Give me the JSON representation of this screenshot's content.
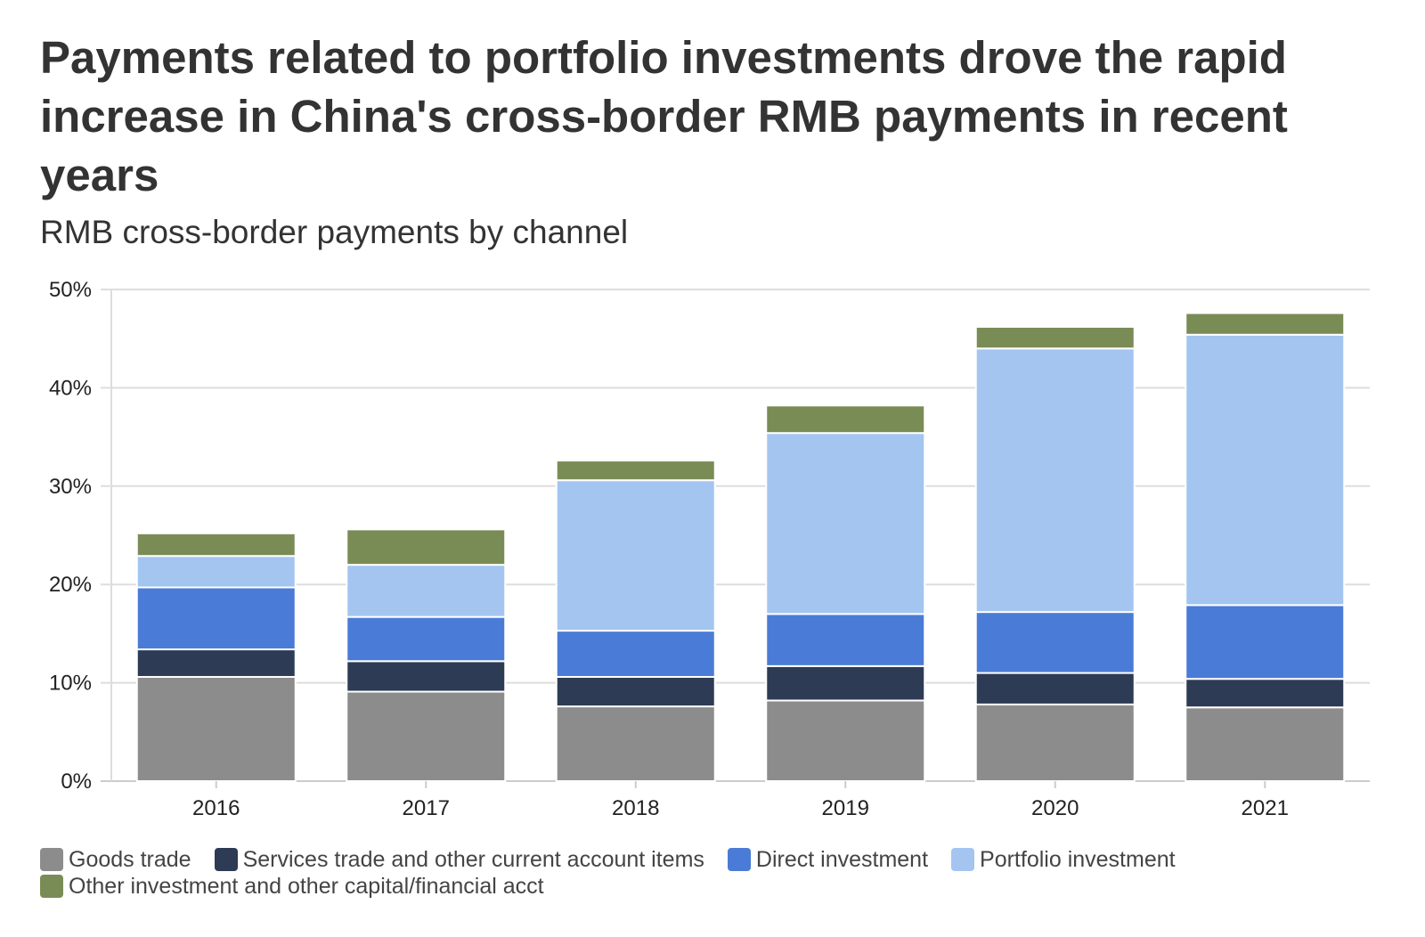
{
  "title": "Payments related to portfolio investments drove the rapid increase in China's cross-border RMB payments in recent years",
  "subtitle": "RMB cross-border payments by channel",
  "chart_data": {
    "type": "bar",
    "stacked": true,
    "categories": [
      "2016",
      "2017",
      "2018",
      "2019",
      "2020",
      "2021"
    ],
    "series": [
      {
        "name": "Goods trade",
        "color": "#8c8c8c",
        "values": [
          10.6,
          9.1,
          7.6,
          8.2,
          7.8,
          7.5
        ]
      },
      {
        "name": "Services trade and other current account items",
        "color": "#2d3b55",
        "values": [
          2.8,
          3.1,
          3.0,
          3.5,
          3.2,
          2.9
        ]
      },
      {
        "name": "Direct investment",
        "color": "#4a7bd6",
        "values": [
          6.3,
          4.5,
          4.7,
          5.3,
          6.2,
          7.5
        ]
      },
      {
        "name": "Portfolio investment",
        "color": "#a3c5f0",
        "values": [
          3.2,
          5.3,
          15.3,
          18.4,
          26.8,
          27.5
        ]
      },
      {
        "name": "Other investment and other capital/financial acct",
        "color": "#7a8c56",
        "values": [
          2.3,
          3.6,
          2.0,
          2.8,
          2.2,
          2.2
        ]
      }
    ],
    "y_ticks": [
      "0%",
      "10%",
      "20%",
      "30%",
      "40%",
      "50%"
    ],
    "ylim": [
      0,
      50
    ],
    "grid": true,
    "legend": "bottom"
  }
}
